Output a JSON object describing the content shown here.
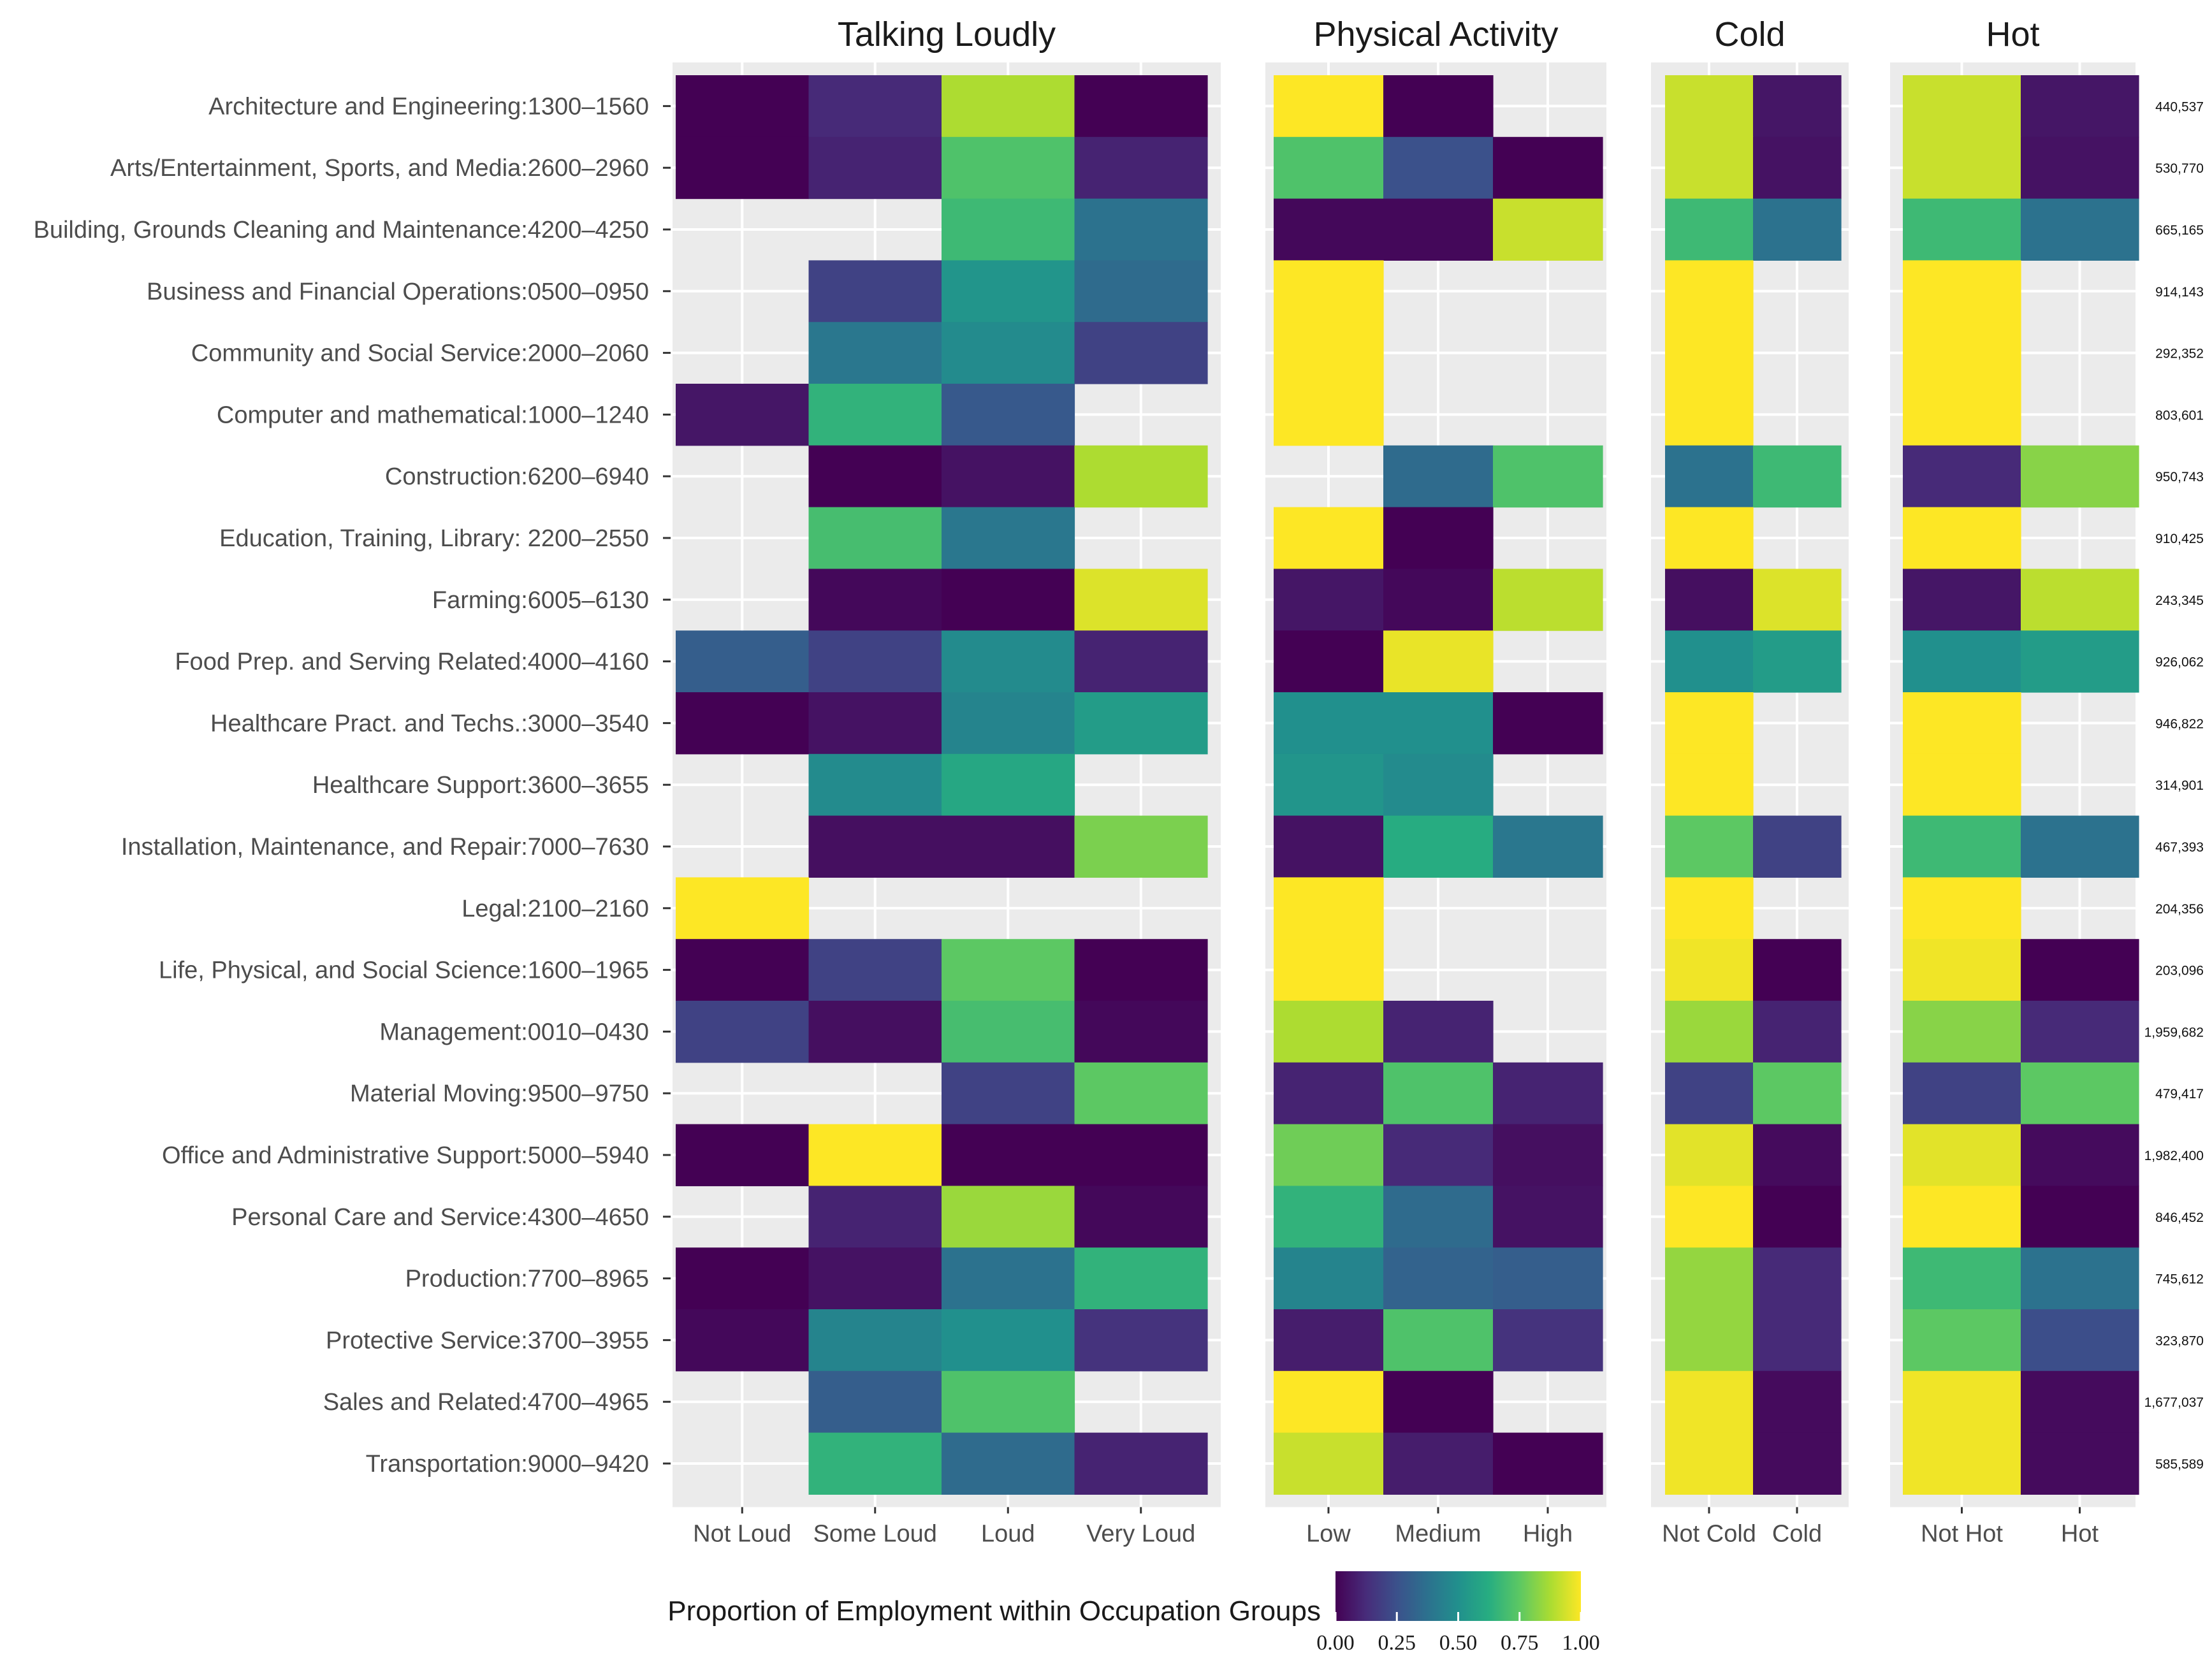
{
  "chart_data": {
    "type": "heatmap",
    "title": "",
    "legend_title": "Proportion of Employment within Occupation Groups",
    "legend_ticks": [
      "0.00",
      "0.25",
      "0.50",
      "0.75",
      "1.00"
    ],
    "legend_range": [
      0,
      1
    ],
    "colormap": [
      "#440154",
      "#472c7a",
      "#3b518b",
      "#2c718e",
      "#21908d",
      "#27ad81",
      "#5cc863",
      "#aadc32",
      "#fde725"
    ],
    "panel_background": "#ebebeb",
    "grid_color": "#ffffff",
    "occupations": [
      "Architecture and Engineering:1300–1560",
      "Arts/Entertainment, Sports, and Media:2600–2960",
      "Building, Grounds Cleaning and Maintenance:4200–4250",
      "Business and Financial Operations:0500–0950",
      "Community and Social Service:2000–2060",
      "Computer and mathematical:1000–1240",
      "Construction:6200–6940",
      "Education, Training, Library: 2200–2550",
      "Farming:6005–6130",
      "Food Prep. and Serving Related:4000–4160",
      "Healthcare Pract. and Techs.:3000–3540",
      "Healthcare Support:3600–3655",
      "Installation, Maintenance, and Repair:7000–7630",
      "Legal:2100–2160",
      "Life, Physical, and Social Science:1600–1965",
      "Management:0010–0430",
      "Material Moving:9500–9750",
      "Office and Administrative Support:5000–5940",
      "Personal Care and Service:4300–4650",
      "Production:7700–8965",
      "Protective Service:3700–3955",
      "Sales and Related:4700–4965",
      "Transportation:9000–9420"
    ],
    "counts": [
      "440,537",
      "530,770",
      "665,165",
      "914,143",
      "292,352",
      "803,601",
      "950,743",
      "910,425",
      "243,345",
      "926,062",
      "946,822",
      "314,901",
      "467,393",
      "204,356",
      "203,096",
      "1,959,682",
      "479,417",
      "1,982,400",
      "846,452",
      "745,612",
      "323,870",
      "1,677,037",
      "585,589"
    ],
    "facets": [
      {
        "title": "Talking Loudly",
        "columns": [
          "Not Loud",
          "Some Loud",
          "Loud",
          "Very Loud"
        ],
        "values": [
          [
            0.0,
            0.12,
            0.88,
            0.0
          ],
          [
            0.0,
            0.1,
            0.72,
            0.1
          ],
          [
            null,
            null,
            0.68,
            0.38
          ],
          [
            null,
            0.2,
            0.52,
            0.35
          ],
          [
            null,
            0.4,
            0.48,
            0.2
          ],
          [
            0.06,
            0.65,
            0.28,
            null
          ],
          [
            null,
            0.0,
            0.05,
            0.88
          ],
          [
            null,
            0.7,
            0.4,
            null
          ],
          [
            null,
            0.02,
            0.0,
            0.95
          ],
          [
            0.3,
            0.2,
            0.48,
            0.1
          ],
          [
            0.0,
            0.05,
            0.45,
            0.55
          ],
          [
            null,
            0.48,
            0.6,
            null
          ],
          [
            null,
            0.04,
            0.04,
            0.8
          ],
          [
            1.0,
            null,
            null,
            null
          ],
          [
            0.0,
            0.2,
            0.75,
            0.0
          ],
          [
            0.2,
            0.04,
            0.7,
            0.02
          ],
          [
            null,
            null,
            0.2,
            0.75
          ],
          [
            0.0,
            1.0,
            0.0,
            0.0
          ],
          [
            null,
            0.1,
            0.85,
            0.02
          ],
          [
            0.0,
            0.05,
            0.38,
            0.65
          ],
          [
            0.02,
            0.45,
            0.5,
            0.15
          ],
          [
            null,
            0.3,
            0.72,
            null
          ],
          [
            null,
            0.65,
            0.35,
            0.1
          ]
        ]
      },
      {
        "title": "Physical Activity",
        "columns": [
          "Low",
          "Medium",
          "High"
        ],
        "values": [
          [
            1.0,
            0.0,
            null
          ],
          [
            0.72,
            0.25,
            0.0
          ],
          [
            0.02,
            0.02,
            0.92
          ],
          [
            1.0,
            null,
            null
          ],
          [
            1.0,
            null,
            null
          ],
          [
            1.0,
            null,
            null
          ],
          [
            null,
            0.35,
            0.72
          ],
          [
            1.0,
            0.0,
            null
          ],
          [
            0.06,
            0.02,
            0.9
          ],
          [
            0.0,
            0.97,
            null
          ],
          [
            0.5,
            0.5,
            0.0
          ],
          [
            0.52,
            0.48,
            null
          ],
          [
            0.05,
            0.62,
            0.4
          ],
          [
            1.0,
            null,
            null
          ],
          [
            1.0,
            null,
            null
          ],
          [
            0.88,
            0.1,
            null
          ],
          [
            0.1,
            0.72,
            0.1
          ],
          [
            0.78,
            0.12,
            0.04
          ],
          [
            0.65,
            0.35,
            0.05
          ],
          [
            0.45,
            0.32,
            0.3
          ],
          [
            0.08,
            0.72,
            0.15
          ],
          [
            1.0,
            0.0,
            null
          ],
          [
            0.92,
            0.08,
            0.0
          ]
        ]
      },
      {
        "title": "Cold",
        "columns": [
          "Not Cold",
          "Cold"
        ],
        "values": [
          [
            0.92,
            0.06
          ],
          [
            0.92,
            0.05
          ],
          [
            0.68,
            0.38
          ],
          [
            1.0,
            null
          ],
          [
            1.0,
            null
          ],
          [
            1.0,
            null
          ],
          [
            0.38,
            0.68
          ],
          [
            1.0,
            null
          ],
          [
            0.04,
            0.95
          ],
          [
            0.5,
            0.55
          ],
          [
            1.0,
            null
          ],
          [
            1.0,
            null
          ],
          [
            0.75,
            0.2
          ],
          [
            1.0,
            null
          ],
          [
            0.98,
            0.0
          ],
          [
            0.85,
            0.1
          ],
          [
            0.2,
            0.75
          ],
          [
            0.96,
            0.03
          ],
          [
            1.0,
            0.0
          ],
          [
            0.84,
            0.12
          ],
          [
            0.84,
            0.12
          ],
          [
            0.98,
            0.03
          ],
          [
            0.98,
            0.03
          ]
        ]
      },
      {
        "title": "Hot",
        "columns": [
          "Not Hot",
          "Hot"
        ],
        "values": [
          [
            0.92,
            0.06
          ],
          [
            0.92,
            0.05
          ],
          [
            0.68,
            0.38
          ],
          [
            1.0,
            null
          ],
          [
            1.0,
            null
          ],
          [
            1.0,
            null
          ],
          [
            0.12,
            0.82
          ],
          [
            1.0,
            null
          ],
          [
            0.06,
            0.9
          ],
          [
            0.5,
            0.55
          ],
          [
            1.0,
            null
          ],
          [
            1.0,
            null
          ],
          [
            0.68,
            0.38
          ],
          [
            1.0,
            null
          ],
          [
            0.98,
            0.0
          ],
          [
            0.82,
            0.12
          ],
          [
            0.2,
            0.75
          ],
          [
            0.96,
            0.03
          ],
          [
            1.0,
            0.0
          ],
          [
            0.68,
            0.38
          ],
          [
            0.75,
            0.24
          ],
          [
            0.98,
            0.03
          ],
          [
            0.98,
            0.03
          ]
        ]
      }
    ]
  }
}
